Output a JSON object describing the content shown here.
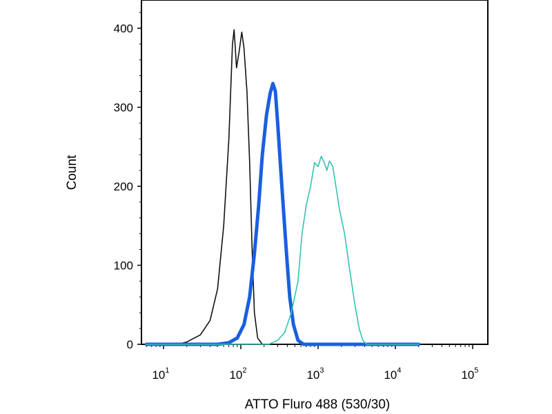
{
  "chart_data": {
    "type": "line",
    "title": "",
    "xlabel": "ATTO Fluro 488 (530/30)",
    "ylabel": "Count",
    "xscale": "log",
    "xlim": [
      6,
      20000
    ],
    "ylim": [
      0,
      420
    ],
    "x_ticks": [
      {
        "value": 10,
        "base": "10",
        "exp": "1"
      },
      {
        "value": 100,
        "base": "10",
        "exp": "2"
      },
      {
        "value": 1000,
        "base": "10",
        "exp": "3"
      },
      {
        "value": 10000,
        "base": "10",
        "exp": "4"
      },
      {
        "value": 100000,
        "base": "10",
        "exp": "5"
      }
    ],
    "y_ticks": [
      0,
      100,
      200,
      300,
      400
    ],
    "grid": false,
    "legend": "none",
    "series": [
      {
        "color": "#111111",
        "width": 1.6,
        "points": [
          [
            6,
            0
          ],
          [
            15,
            0
          ],
          [
            20,
            3
          ],
          [
            30,
            12
          ],
          [
            40,
            30
          ],
          [
            50,
            70
          ],
          [
            60,
            150
          ],
          [
            70,
            260
          ],
          [
            78,
            380
          ],
          [
            82,
            398
          ],
          [
            88,
            350
          ],
          [
            95,
            370
          ],
          [
            103,
            395
          ],
          [
            110,
            375
          ],
          [
            120,
            320
          ],
          [
            130,
            230
          ],
          [
            140,
            120
          ],
          [
            150,
            40
          ],
          [
            165,
            8
          ],
          [
            190,
            0
          ],
          [
            20000,
            0
          ]
        ]
      },
      {
        "color": "#1a5fe0",
        "width": 5,
        "points": [
          [
            6,
            0
          ],
          [
            50,
            0
          ],
          [
            70,
            2
          ],
          [
            90,
            8
          ],
          [
            110,
            25
          ],
          [
            130,
            60
          ],
          [
            150,
            115
          ],
          [
            170,
            175
          ],
          [
            190,
            240
          ],
          [
            215,
            290
          ],
          [
            240,
            318
          ],
          [
            260,
            330
          ],
          [
            280,
            320
          ],
          [
            300,
            280
          ],
          [
            340,
            200
          ],
          [
            390,
            115
          ],
          [
            430,
            60
          ],
          [
            480,
            25
          ],
          [
            550,
            5
          ],
          [
            650,
            0
          ],
          [
            20000,
            0
          ]
        ]
      },
      {
        "color": "#33c2b3",
        "width": 1.6,
        "points": [
          [
            6,
            0
          ],
          [
            230,
            0
          ],
          [
            300,
            5
          ],
          [
            370,
            15
          ],
          [
            450,
            40
          ],
          [
            550,
            80
          ],
          [
            620,
            140
          ],
          [
            700,
            175
          ],
          [
            800,
            200
          ],
          [
            900,
            230
          ],
          [
            1000,
            225
          ],
          [
            1100,
            238
          ],
          [
            1200,
            230
          ],
          [
            1300,
            220
          ],
          [
            1400,
            232
          ],
          [
            1550,
            225
          ],
          [
            1700,
            200
          ],
          [
            1900,
            170
          ],
          [
            2200,
            140
          ],
          [
            2600,
            90
          ],
          [
            3000,
            50
          ],
          [
            3400,
            20
          ],
          [
            3800,
            5
          ],
          [
            4300,
            0
          ],
          [
            20000,
            0
          ]
        ]
      }
    ]
  }
}
